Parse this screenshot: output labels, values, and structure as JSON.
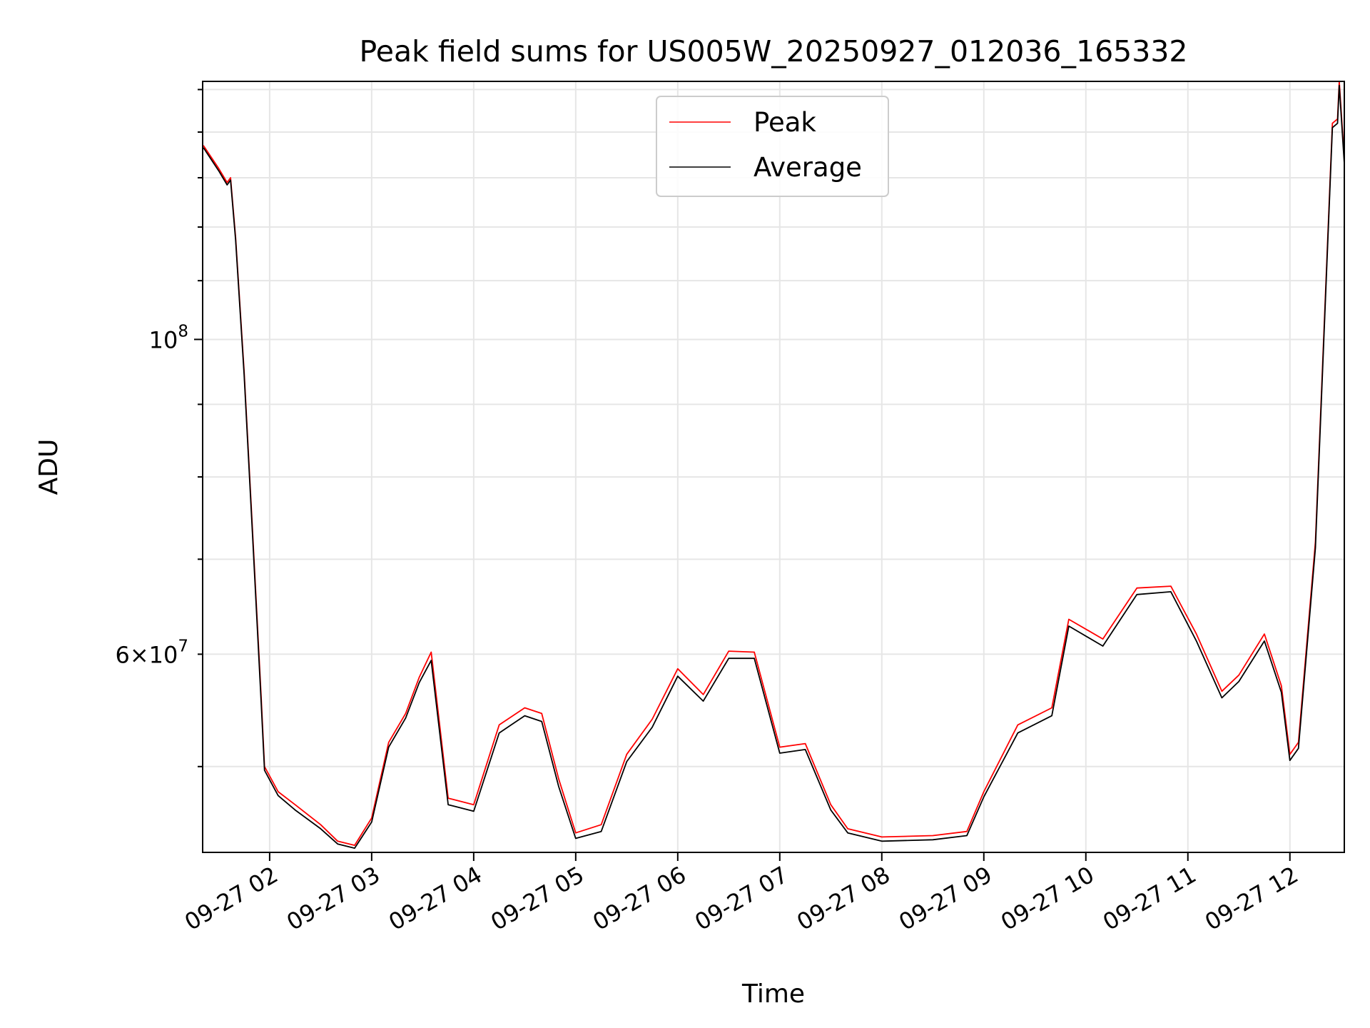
{
  "chart_data": {
    "type": "line",
    "title": "Peak field sums for US005W_20250927_012036_165332",
    "xlabel": "Time",
    "ylabel": "ADU",
    "y_scale": "log",
    "ylim": [
      43500000,
      152000000
    ],
    "xlim": [
      "2025-09-27 01:20:36",
      "2025-09-27 12:32:00"
    ],
    "x_tick_labels": [
      "09-27 02",
      "09-27 03",
      "09-27 04",
      "09-27 05",
      "09-27 06",
      "09-27 07",
      "09-27 08",
      "09-27 09",
      "09-27 10",
      "09-27 11",
      "09-27 12"
    ],
    "x_ticks": [
      "2025-09-27 02:00",
      "2025-09-27 03:00",
      "2025-09-27 04:00",
      "2025-09-27 05:00",
      "2025-09-27 06:00",
      "2025-09-27 07:00",
      "2025-09-27 08:00",
      "2025-09-27 09:00",
      "2025-09-27 10:00",
      "2025-09-27 11:00",
      "2025-09-27 12:00"
    ],
    "y_tick_labels": [
      {
        "value": 100000000,
        "label": "10^8"
      },
      {
        "value": 60000000,
        "label": "6×10^7"
      }
    ],
    "grid": true,
    "legend": "top-center",
    "series": [
      {
        "name": "Peak",
        "color": "#ff0000",
        "x": [
          "2025-09-27 01:21",
          "2025-09-27 01:30",
          "2025-09-27 01:35",
          "2025-09-27 01:37",
          "2025-09-27 01:40",
          "2025-09-27 01:45",
          "2025-09-27 01:50",
          "2025-09-27 01:55",
          "2025-09-27 01:57",
          "2025-09-27 02:05",
          "2025-09-27 02:15",
          "2025-09-27 02:30",
          "2025-09-27 02:40",
          "2025-09-27 02:50",
          "2025-09-27 03:00",
          "2025-09-27 03:10",
          "2025-09-27 03:20",
          "2025-09-27 03:28",
          "2025-09-27 03:35",
          "2025-09-27 03:45",
          "2025-09-27 04:00",
          "2025-09-27 04:15",
          "2025-09-27 04:30",
          "2025-09-27 04:40",
          "2025-09-27 04:50",
          "2025-09-27 05:00",
          "2025-09-27 05:15",
          "2025-09-27 05:30",
          "2025-09-27 05:45",
          "2025-09-27 06:00",
          "2025-09-27 06:15",
          "2025-09-27 06:30",
          "2025-09-27 06:45",
          "2025-09-27 07:00",
          "2025-09-27 07:15",
          "2025-09-27 07:30",
          "2025-09-27 07:40",
          "2025-09-27 08:00",
          "2025-09-27 08:30",
          "2025-09-27 08:50",
          "2025-09-27 09:00",
          "2025-09-27 09:20",
          "2025-09-27 09:40",
          "2025-09-27 09:50",
          "2025-09-27 10:10",
          "2025-09-27 10:30",
          "2025-09-27 10:50",
          "2025-09-27 11:05",
          "2025-09-27 11:20",
          "2025-09-27 11:30",
          "2025-09-27 11:45",
          "2025-09-27 11:55",
          "2025-09-27 12:00",
          "2025-09-27 12:05",
          "2025-09-27 12:15",
          "2025-09-27 12:25",
          "2025-09-27 12:28",
          "2025-09-27 12:29",
          "2025-09-27 12:32"
        ],
        "values": [
          137000000,
          132000000,
          129000000,
          130000000,
          118000000,
          95000000,
          73000000,
          56000000,
          50000000,
          48000000,
          47000000,
          45500000,
          44300000,
          44000000,
          46000000,
          52000000,
          54500000,
          57800000,
          60200000,
          47500000,
          47000000,
          53500000,
          55000000,
          54500000,
          49000000,
          44900000,
          45500000,
          51000000,
          54000000,
          58600000,
          56200000,
          60300000,
          60200000,
          51600000,
          51900000,
          47000000,
          45200000,
          44600000,
          44700000,
          45000000,
          48000000,
          53500000,
          55000000,
          63500000,
          61500000,
          66800000,
          67000000,
          62000000,
          56500000,
          58000000,
          62000000,
          57000000,
          51000000,
          52000000,
          72000000,
          142000000,
          143000000,
          152000000,
          134000000
        ]
      },
      {
        "name": "Average",
        "color": "#000000",
        "x": [
          "2025-09-27 01:21",
          "2025-09-27 01:30",
          "2025-09-27 01:35",
          "2025-09-27 01:37",
          "2025-09-27 01:40",
          "2025-09-27 01:45",
          "2025-09-27 01:50",
          "2025-09-27 01:55",
          "2025-09-27 01:57",
          "2025-09-27 02:05",
          "2025-09-27 02:15",
          "2025-09-27 02:30",
          "2025-09-27 02:40",
          "2025-09-27 02:50",
          "2025-09-27 03:00",
          "2025-09-27 03:10",
          "2025-09-27 03:20",
          "2025-09-27 03:28",
          "2025-09-27 03:35",
          "2025-09-27 03:45",
          "2025-09-27 04:00",
          "2025-09-27 04:15",
          "2025-09-27 04:30",
          "2025-09-27 04:40",
          "2025-09-27 04:50",
          "2025-09-27 05:00",
          "2025-09-27 05:15",
          "2025-09-27 05:30",
          "2025-09-27 05:45",
          "2025-09-27 06:00",
          "2025-09-27 06:15",
          "2025-09-27 06:30",
          "2025-09-27 06:45",
          "2025-09-27 07:00",
          "2025-09-27 07:15",
          "2025-09-27 07:30",
          "2025-09-27 07:40",
          "2025-09-27 08:00",
          "2025-09-27 08:30",
          "2025-09-27 08:50",
          "2025-09-27 09:00",
          "2025-09-27 09:20",
          "2025-09-27 09:40",
          "2025-09-27 09:50",
          "2025-09-27 10:10",
          "2025-09-27 10:30",
          "2025-09-27 10:50",
          "2025-09-27 11:05",
          "2025-09-27 11:20",
          "2025-09-27 11:30",
          "2025-09-27 11:45",
          "2025-09-27 11:55",
          "2025-09-27 12:00",
          "2025-09-27 12:05",
          "2025-09-27 12:15",
          "2025-09-27 12:25",
          "2025-09-27 12:28",
          "2025-09-27 12:29",
          "2025-09-27 12:32"
        ],
        "values": [
          136500000,
          131500000,
          128500000,
          129500000,
          117500000,
          94500000,
          72500000,
          55500000,
          49700000,
          47700000,
          46600000,
          45200000,
          44100000,
          43800000,
          45700000,
          51600000,
          54100000,
          57300000,
          59400000,
          47000000,
          46500000,
          52800000,
          54300000,
          53800000,
          48400000,
          44500000,
          45000000,
          50400000,
          53300000,
          57900000,
          55600000,
          59600000,
          59600000,
          51100000,
          51400000,
          46600000,
          44900000,
          44300000,
          44400000,
          44700000,
          47600000,
          52800000,
          54300000,
          62800000,
          60800000,
          66100000,
          66400000,
          61300000,
          55900000,
          57400000,
          61300000,
          56400000,
          50500000,
          51500000,
          71300000,
          141000000,
          142000000,
          151000000,
          133000000
        ]
      }
    ]
  }
}
